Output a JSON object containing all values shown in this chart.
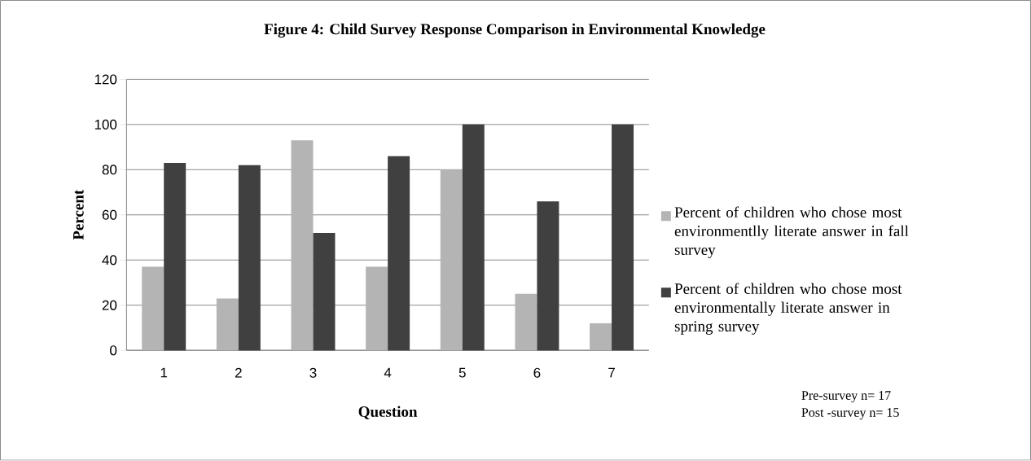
{
  "chart_data": {
    "type": "bar",
    "title": "Figure 4: Child Survey Response Comparison in Environmental Knowledge",
    "xlabel": "Question",
    "ylabel": "Percent",
    "categories": [
      "1",
      "2",
      "3",
      "4",
      "5",
      "6",
      "7"
    ],
    "series": [
      {
        "name": "Percent of children who chose most environmentlly literate answer in fall survey",
        "color": "#b4b4b4",
        "values": [
          37,
          23,
          93,
          37,
          80,
          25,
          12
        ]
      },
      {
        "name": "Percent of children who chose most environmentally literate answer in spring survey",
        "color": "#404040",
        "values": [
          83,
          82,
          52,
          86,
          100,
          66,
          100
        ]
      }
    ],
    "ylim": [
      0,
      120
    ],
    "yticks": [
      0,
      20,
      40,
      60,
      80,
      100,
      120
    ],
    "grid": "y",
    "legend": "right",
    "annotations": [
      "Pre-survey  n= 17",
      "Post -survey n= 15"
    ]
  }
}
